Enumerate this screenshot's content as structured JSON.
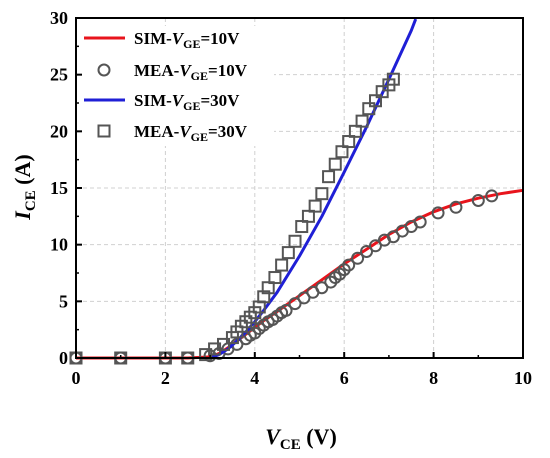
{
  "chart_data": {
    "type": "line",
    "x_axis": {
      "min": 0,
      "max": 10,
      "ticks": [
        0,
        2,
        4,
        6,
        8,
        10
      ]
    },
    "y_axis": {
      "min": 0,
      "max": 30,
      "ticks": [
        0,
        5,
        10,
        15,
        20,
        25,
        30
      ]
    },
    "grid": "dashed light gray",
    "xlabel": {
      "main": "V",
      "sub": "CE",
      "unit": " (V)"
    },
    "ylabel": {
      "main": "I",
      "sub": "CE",
      "unit": " (A)"
    },
    "legend_position": "top-left",
    "series": [
      {
        "name": "SIM-V_GE=10V",
        "legend": {
          "prefix": "SIM-",
          "var": "V",
          "sub": "GE",
          "suffix": "=10V"
        },
        "kind": "line",
        "color": "#e8141c",
        "x": [
          0,
          2.5,
          3.0,
          3.2,
          3.4,
          3.6,
          3.8,
          4.0,
          4.2,
          4.5,
          5.0,
          5.5,
          6.0,
          6.5,
          7.0,
          7.5,
          8.0,
          8.5,
          9.0,
          9.5,
          10.0
        ],
        "y": [
          0,
          0,
          0.1,
          0.4,
          0.9,
          1.5,
          2.1,
          2.7,
          3.3,
          4.1,
          5.5,
          6.9,
          8.3,
          9.6,
          10.9,
          12.0,
          12.9,
          13.6,
          14.1,
          14.5,
          14.8
        ]
      },
      {
        "name": "MEA-V_GE=10V",
        "legend": {
          "prefix": "MEA-",
          "var": "V",
          "sub": "GE",
          "suffix": "=10V"
        },
        "kind": "markers",
        "marker": "circle",
        "color": "#555555",
        "x": [
          0,
          1.0,
          2.0,
          2.5,
          3.0,
          3.2,
          3.4,
          3.6,
          3.8,
          3.9,
          4.0,
          4.1,
          4.2,
          4.3,
          4.4,
          4.5,
          4.6,
          4.7,
          4.9,
          5.1,
          5.3,
          5.5,
          5.7,
          5.8,
          5.9,
          6.0,
          6.1,
          6.3,
          6.5,
          6.7,
          6.9,
          7.1,
          7.3,
          7.5,
          7.7,
          8.1,
          8.5,
          9.0,
          9.3
        ],
        "y": [
          0,
          0,
          0,
          0,
          0.2,
          0.4,
          0.8,
          1.2,
          1.7,
          2.0,
          2.2,
          2.6,
          2.9,
          3.2,
          3.4,
          3.7,
          4.0,
          4.2,
          4.8,
          5.3,
          5.8,
          6.2,
          6.7,
          7.1,
          7.4,
          7.8,
          8.2,
          8.8,
          9.4,
          9.9,
          10.4,
          10.7,
          11.2,
          11.6,
          12.0,
          12.8,
          13.3,
          13.9,
          14.3
        ]
      },
      {
        "name": "SIM-V_GE=30V",
        "legend": {
          "prefix": "SIM-",
          "var": "V",
          "sub": "GE",
          "suffix": "=30V"
        },
        "kind": "line",
        "color": "#1f1fd6",
        "x": [
          3.0,
          3.2,
          3.4,
          3.6,
          3.8,
          4.0,
          4.2,
          4.5,
          5.0,
          5.5,
          6.0,
          6.5,
          7.0,
          7.5,
          7.6
        ],
        "y": [
          0,
          0.3,
          0.8,
          1.5,
          2.3,
          3.2,
          4.2,
          5.8,
          9.0,
          12.5,
          16.4,
          20.4,
          24.6,
          28.9,
          29.9
        ]
      },
      {
        "name": "MEA-V_GE=30V",
        "legend": {
          "prefix": "MEA-",
          "var": "V",
          "sub": "GE",
          "suffix": "=30V"
        },
        "kind": "markers",
        "marker": "square",
        "color": "#555555",
        "x": [
          0,
          1.0,
          2.0,
          2.5,
          2.9,
          3.1,
          3.3,
          3.5,
          3.6,
          3.7,
          3.8,
          3.9,
          4.0,
          4.1,
          4.2,
          4.3,
          4.45,
          4.6,
          4.75,
          4.9,
          5.05,
          5.2,
          5.35,
          5.5,
          5.65,
          5.8,
          5.95,
          6.1,
          6.25,
          6.4,
          6.55,
          6.7,
          6.85,
          7.0,
          7.1
        ],
        "y": [
          0,
          0,
          0,
          0,
          0.3,
          0.8,
          1.2,
          1.8,
          2.3,
          2.8,
          3.2,
          3.6,
          4.0,
          4.5,
          5.4,
          6.2,
          7.1,
          8.2,
          9.3,
          10.3,
          11.6,
          12.5,
          13.4,
          14.5,
          16.0,
          17.1,
          18.2,
          19.1,
          20.0,
          20.9,
          22.0,
          22.7,
          23.5,
          24.1,
          24.6
        ]
      }
    ]
  }
}
